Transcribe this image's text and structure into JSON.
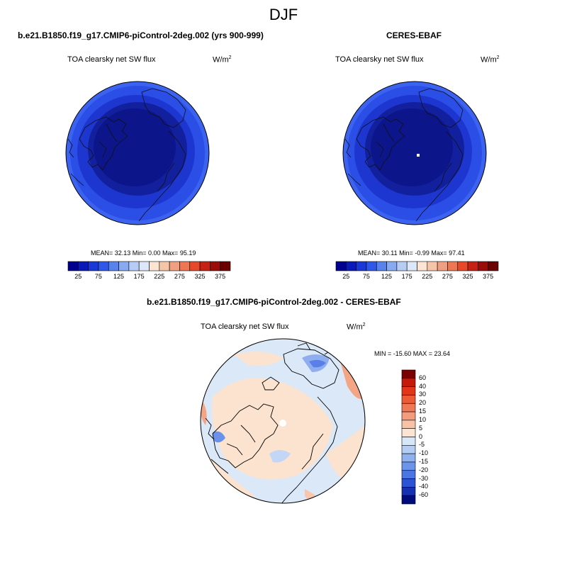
{
  "season": "DJF",
  "panels": [
    {
      "title": "b.e21.B1850.f19_g17.CMIP6-piControl-2deg.002 (yrs 900-999)",
      "variable": "TOA clearsky net SW flux",
      "units_base": "W/m",
      "units_exp": "2",
      "stats": "MEAN=  32.13  Min=   0.00  Max=  95.19"
    },
    {
      "title": "CERES-EBAF",
      "variable": "TOA clearsky net SW flux",
      "units_base": "W/m",
      "units_exp": "2",
      "stats": "MEAN=  30.11  Min=  -0.99  Max=  97.41"
    },
    {
      "title": "b.e21.B1850.f19_g17.CMIP6-piControl-2deg.002 - CERES-EBAF",
      "variable": "TOA clearsky net SW flux",
      "units_base": "W/m",
      "units_exp": "2",
      "stats": "MIN = -15.60 MAX =  23.64"
    }
  ],
  "field_colorbar": {
    "labels": [
      "25",
      "75",
      "125",
      "175",
      "225",
      "275",
      "325",
      "375"
    ],
    "colors": [
      "#00008f",
      "#0a1ab8",
      "#1a37d8",
      "#2f58ea",
      "#5882ee",
      "#88aaf1",
      "#b6ccf5",
      "#dce8f7",
      "#fde5d4",
      "#f6c5a8",
      "#f0a080",
      "#ec7752",
      "#e5492a",
      "#c52114",
      "#9a0c08",
      "#6b0000"
    ]
  },
  "diff_colorbar": {
    "labels": [
      "60",
      "40",
      "30",
      "20",
      "15",
      "10",
      "5",
      "0",
      "-5",
      "-10",
      "-15",
      "-20",
      "-30",
      "-40",
      "-60"
    ],
    "colors": [
      "#7a0000",
      "#c41a0c",
      "#e2361a",
      "#ec5a36",
      "#f07a58",
      "#f39d7e",
      "#f7c3a6",
      "#fbe4d2",
      "#d8e7f8",
      "#b3cdf4",
      "#8fb2ef",
      "#6c95ea",
      "#4a76e3",
      "#2c53d2",
      "#1530b0",
      "#000c7c"
    ]
  }
}
